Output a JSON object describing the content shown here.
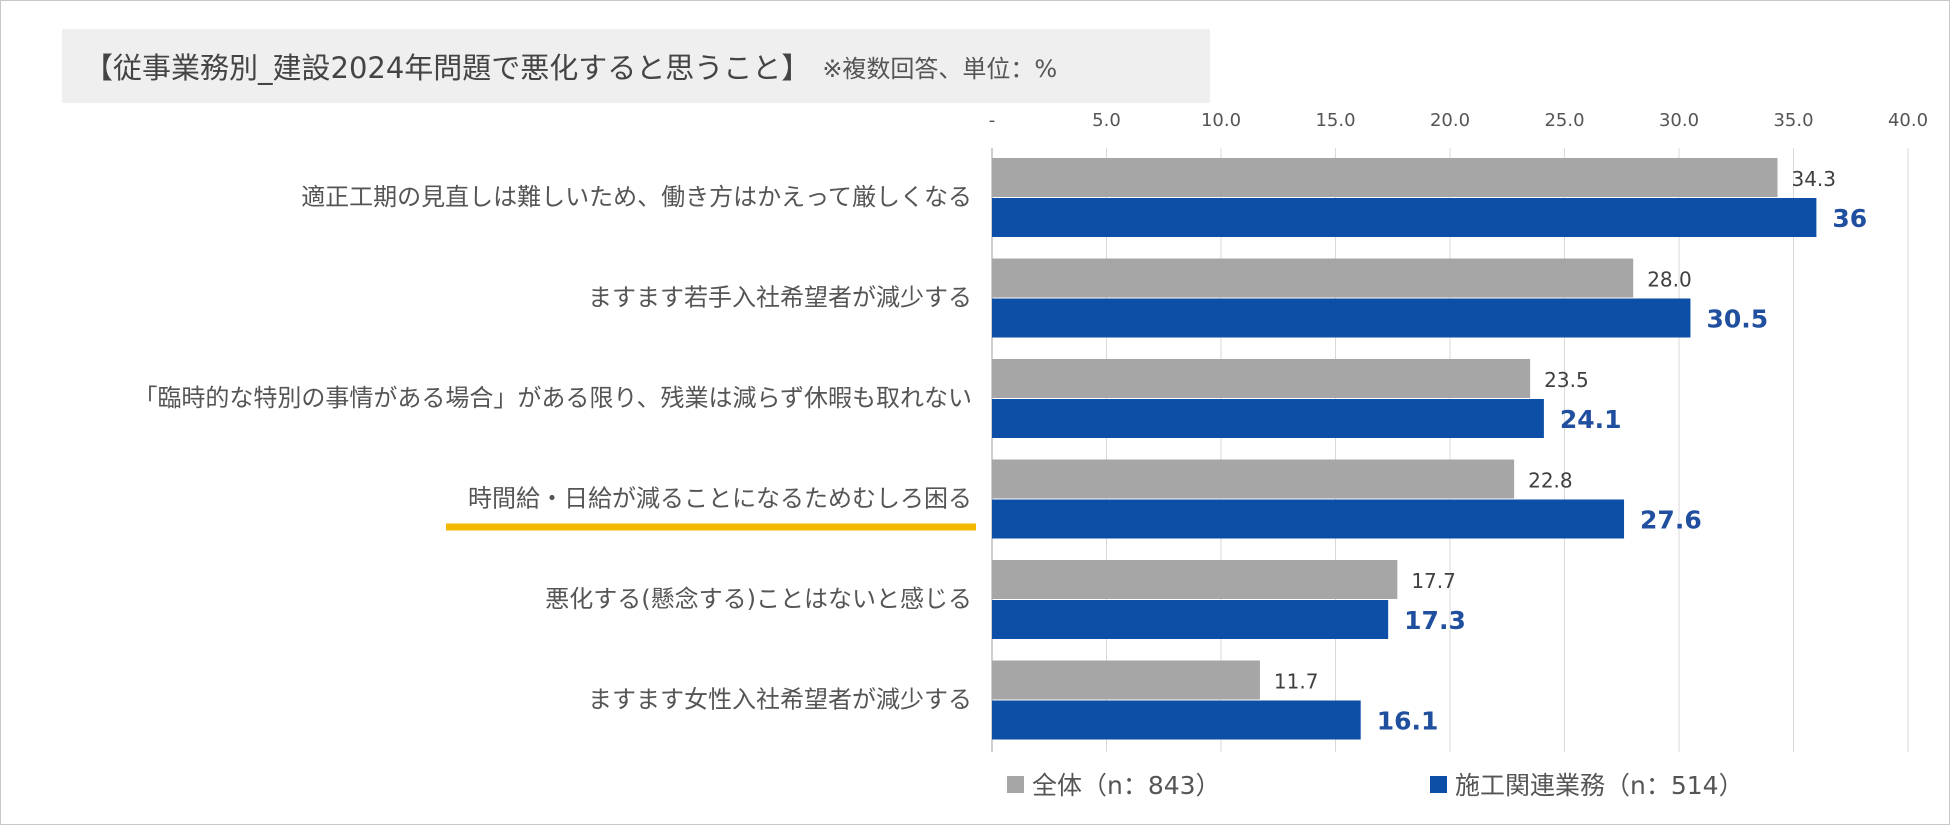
{
  "title": "【従事業務別_建設2024年問題で悪化すると思うこと】",
  "title_note": "※複数回答、単位：%",
  "highlight_color": "#f5b800",
  "chart_data": {
    "type": "bar",
    "orientation": "horizontal",
    "categories": [
      "適正工期の見直しは難しいため、働き方はかえって厳しくなる",
      "ますます若手入社希望者が減少する",
      "「臨時的な特別の事情がある場合」がある限り、残業は減らず休暇も取れない",
      "時間給・日給が減ることになるためむしろ困る",
      "悪化する(懸念する)ことはないと感じる",
      "ますます女性入社希望者が減少する"
    ],
    "highlighted_category_index": 3,
    "series": [
      {
        "name": "全体（n：843）",
        "color": "#a6a6a6",
        "values": [
          34.3,
          28.0,
          23.5,
          22.8,
          17.7,
          11.7
        ],
        "labels": [
          "34.3",
          "28.0",
          "23.5",
          "22.8",
          "17.7",
          "11.7"
        ]
      },
      {
        "name": "施工関連業務（n：514）",
        "color": "#0d4ea6",
        "values": [
          36,
          30.5,
          24.1,
          27.6,
          17.3,
          16.1
        ],
        "labels": [
          "36",
          "30.5",
          "24.1",
          "27.6",
          "17.3",
          "16.1"
        ]
      }
    ],
    "xlim": [
      0,
      40
    ],
    "xticks": [
      "-",
      "5.0",
      "10.0",
      "15.0",
      "20.0",
      "25.0",
      "30.0",
      "35.0",
      "40.0"
    ],
    "axis_position": "top",
    "grid": true,
    "legend_position": "bottom"
  }
}
